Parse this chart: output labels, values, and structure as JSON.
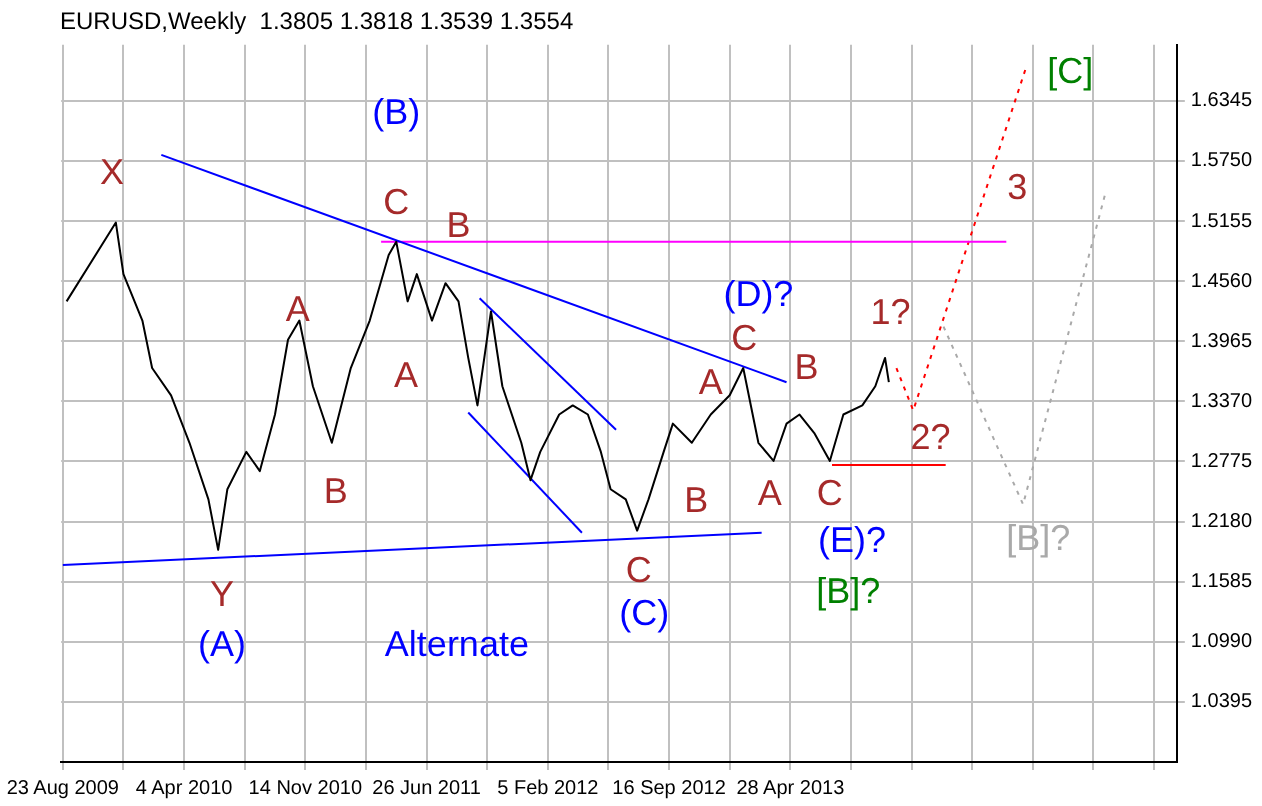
{
  "chart_data": {
    "type": "line",
    "title": "EURUSD,Weekly  1.3805 1.3818 1.3539 1.3554",
    "xlim": [
      "2009-08-20",
      "2015-04-12"
    ],
    "xticks": [
      {
        "value": "2009-08-23",
        "label": "23 Aug 2009"
      },
      {
        "value": "2009-12-13",
        "label": null
      },
      {
        "value": "2010-04-04",
        "label": "4 Apr 2010"
      },
      {
        "value": "2010-07-25",
        "label": null
      },
      {
        "value": "2010-11-14",
        "label": "14 Nov 2010"
      },
      {
        "value": "2011-03-06",
        "label": null
      },
      {
        "value": "2011-06-26",
        "label": "26 Jun 2011"
      },
      {
        "value": "2011-10-16",
        "label": null
      },
      {
        "value": "2012-02-05",
        "label": "5 Feb 2012"
      },
      {
        "value": "2012-05-27",
        "label": null
      },
      {
        "value": "2012-09-16",
        "label": "16 Sep 2012"
      },
      {
        "value": "2013-01-06",
        "label": null
      },
      {
        "value": "2013-04-28",
        "label": "28 Apr 2013"
      },
      {
        "value": "2013-08-18",
        "label": null
      },
      {
        "value": "2013-12-08",
        "label": null
      },
      {
        "value": "2014-03-30",
        "label": null
      },
      {
        "value": "2014-07-20",
        "label": null
      },
      {
        "value": "2014-11-09",
        "label": null
      },
      {
        "value": "2015-03-01",
        "label": null
      }
    ],
    "ylim": [
      0.98,
      1.69
    ],
    "yticks": [
      {
        "value": 1.0395,
        "label": "1.0395"
      },
      {
        "value": 1.099,
        "label": "1.0990"
      },
      {
        "value": 1.1585,
        "label": "1.1585"
      },
      {
        "value": 1.218,
        "label": "1.2180"
      },
      {
        "value": 1.2775,
        "label": "1.2775"
      },
      {
        "value": 1.337,
        "label": "1.3370"
      },
      {
        "value": 1.3965,
        "label": "1.3965"
      },
      {
        "value": 1.456,
        "label": "1.4560"
      },
      {
        "value": 1.5155,
        "label": "1.5155"
      },
      {
        "value": 1.575,
        "label": "1.5750"
      },
      {
        "value": 1.6345,
        "label": "1.6345"
      }
    ],
    "grid": true,
    "legend": false,
    "marker": "none",
    "series": [
      {
        "color": "#000000",
        "line_style": "solid",
        "x": [
          "2009-08-30",
          "2009-11-29",
          "2009-12-13",
          "2010-01-17",
          "2010-02-04",
          "2010-03-11",
          "2010-04-14",
          "2010-05-19",
          "2010-06-06",
          "2010-06-23",
          "2010-07-28",
          "2010-08-22",
          "2010-09-19",
          "2010-10-13",
          "2010-11-03",
          "2010-11-28",
          "2011-01-02",
          "2011-02-06",
          "2011-03-13",
          "2011-04-17",
          "2011-05-01",
          "2011-05-22",
          "2011-06-08",
          "2011-07-06",
          "2011-07-31",
          "2011-08-24",
          "2011-09-11",
          "2011-09-28",
          "2011-10-23",
          "2011-11-13",
          "2011-12-18",
          "2012-01-04",
          "2012-01-22",
          "2012-02-26",
          "2012-03-22",
          "2012-04-19",
          "2012-05-13",
          "2012-05-31",
          "2012-06-28",
          "2012-07-19",
          "2012-08-09",
          "2012-09-06",
          "2012-09-23",
          "2012-10-28",
          "2012-12-02",
          "2013-01-06",
          "2013-01-31",
          "2013-02-28",
          "2013-03-28",
          "2013-04-21",
          "2013-05-15",
          "2013-06-12",
          "2013-07-10",
          "2013-08-04",
          "2013-09-08",
          "2013-10-02",
          "2013-10-20",
          "2013-10-27"
        ],
        "values": [
          1.436,
          1.514,
          1.463,
          1.417,
          1.37,
          1.343,
          1.296,
          1.24,
          1.19,
          1.25,
          1.287,
          1.268,
          1.324,
          1.398,
          1.417,
          1.352,
          1.296,
          1.37,
          1.417,
          1.482,
          1.495,
          1.436,
          1.463,
          1.417,
          1.454,
          1.436,
          1.38,
          1.333,
          1.426,
          1.352,
          1.296,
          1.259,
          1.287,
          1.324,
          1.333,
          1.324,
          1.287,
          1.25,
          1.24,
          1.209,
          1.24,
          1.287,
          1.315,
          1.296,
          1.324,
          1.343,
          1.37,
          1.296,
          1.278,
          1.315,
          1.324,
          1.305,
          1.278,
          1.324,
          1.333,
          1.352,
          1.38,
          1.356
        ]
      },
      {
        "color": "#0000ff",
        "line_style": "solid",
        "x": [
          "2010-02-21",
          "2013-04-21"
        ],
        "values": [
          1.581,
          1.356
        ]
      },
      {
        "color": "#0000ff",
        "line_style": "solid",
        "x": [
          "2009-08-23",
          "2013-03-06"
        ],
        "values": [
          1.175,
          1.207
        ]
      },
      {
        "color": "#0000ff",
        "line_style": "solid",
        "x": [
          "2011-10-02",
          "2012-06-10"
        ],
        "values": [
          1.439,
          1.309
        ]
      },
      {
        "color": "#0000ff",
        "line_style": "solid",
        "x": [
          "2011-09-11",
          "2012-04-08"
        ],
        "values": [
          1.326,
          1.207
        ]
      },
      {
        "color": "#ff00ff",
        "line_style": "solid",
        "x": [
          "2011-04-03",
          "2014-06-01"
        ],
        "values": [
          1.495,
          1.495
        ]
      },
      {
        "color": "#ff0000",
        "line_style": "solid",
        "x": [
          "2013-07-14",
          "2014-02-09"
        ],
        "values": [
          1.274,
          1.274
        ]
      },
      {
        "color": "#ff0000",
        "line_style": "dotted",
        "x": [
          "2013-11-10",
          "2013-12-11",
          "2014-07-09"
        ],
        "values": [
          1.37,
          1.328,
          1.67
        ]
      },
      {
        "color": "#a9a9a9",
        "line_style": "dotted",
        "x": [
          "2014-02-05",
          "2014-07-02",
          "2014-11-30"
        ],
        "values": [
          1.411,
          1.235,
          1.541
        ]
      }
    ],
    "annotations": [
      "X",
      "(B)",
      "C",
      "B",
      "A",
      "A",
      "B",
      "Y",
      "(A)",
      "Alternate",
      "A",
      "(D)?",
      "C",
      "B",
      "1?",
      "2?",
      "3",
      "[C]",
      "C",
      "(C)",
      "B",
      "A",
      "C",
      "(E)?",
      "[B]?",
      "[B]?"
    ]
  }
}
